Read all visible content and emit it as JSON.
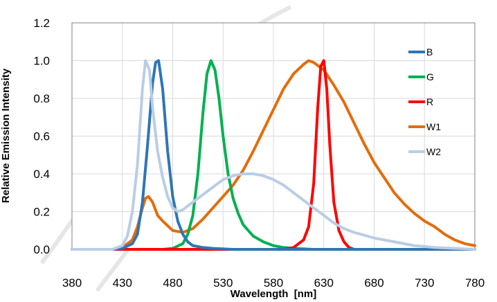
{
  "chart_data": {
    "type": "line",
    "xlabel": "Wavelength  [nm]",
    "ylabel": "Relative Emission Intensity",
    "xlim": [
      380,
      780
    ],
    "ylim": [
      0,
      1.2
    ],
    "x_ticks": [
      380,
      430,
      480,
      530,
      580,
      630,
      680,
      730,
      780
    ],
    "y_ticks": [
      "0.0",
      "0.2",
      "0.4",
      "0.6",
      "0.8",
      "1.0",
      "1.2"
    ],
    "grid": true,
    "legend_position": "right",
    "series": [
      {
        "name": "B",
        "color": "#2e75b6",
        "x": [
          380,
          420,
          430,
          440,
          445,
          450,
          455,
          460,
          463,
          466,
          470,
          475,
          480,
          485,
          490,
          495,
          500,
          510,
          520,
          540,
          780
        ],
        "y": [
          0,
          0,
          0.005,
          0.03,
          0.08,
          0.25,
          0.55,
          0.88,
          0.99,
          1.0,
          0.85,
          0.52,
          0.28,
          0.15,
          0.08,
          0.04,
          0.02,
          0.01,
          0.005,
          0,
          0
        ]
      },
      {
        "name": "G",
        "color": "#00b050",
        "x": [
          380,
          470,
          480,
          490,
          495,
          500,
          505,
          510,
          514,
          518,
          522,
          526,
          530,
          535,
          540,
          545,
          550,
          560,
          570,
          580,
          590,
          600,
          620,
          780
        ],
        "y": [
          0,
          0,
          0.005,
          0.03,
          0.08,
          0.18,
          0.4,
          0.72,
          0.93,
          1.0,
          0.95,
          0.8,
          0.6,
          0.4,
          0.27,
          0.19,
          0.13,
          0.07,
          0.04,
          0.02,
          0.01,
          0.005,
          0,
          0
        ]
      },
      {
        "name": "R",
        "color": "#ff0000",
        "x": [
          380,
          590,
          600,
          610,
          615,
          620,
          624,
          627,
          630,
          633,
          636,
          640,
          645,
          650,
          655,
          660,
          780
        ],
        "y": [
          0,
          0,
          0.01,
          0.05,
          0.12,
          0.35,
          0.75,
          0.97,
          1.0,
          0.85,
          0.55,
          0.25,
          0.1,
          0.04,
          0.01,
          0,
          0
        ]
      },
      {
        "name": "W1",
        "color": "#e46c0a",
        "x": [
          380,
          420,
          430,
          440,
          445,
          450,
          453,
          456,
          460,
          465,
          470,
          480,
          490,
          500,
          510,
          520,
          530,
          540,
          550,
          560,
          570,
          580,
          590,
          600,
          610,
          615,
          620,
          630,
          640,
          650,
          660,
          670,
          680,
          690,
          700,
          710,
          720,
          730,
          740,
          750,
          760,
          770,
          780
        ],
        "y": [
          0,
          0,
          0.01,
          0.05,
          0.12,
          0.22,
          0.27,
          0.28,
          0.25,
          0.18,
          0.15,
          0.1,
          0.09,
          0.11,
          0.16,
          0.22,
          0.28,
          0.34,
          0.42,
          0.52,
          0.63,
          0.74,
          0.85,
          0.93,
          0.98,
          1.0,
          0.99,
          0.95,
          0.87,
          0.78,
          0.67,
          0.56,
          0.46,
          0.38,
          0.3,
          0.24,
          0.19,
          0.15,
          0.12,
          0.08,
          0.05,
          0.03,
          0.02
        ]
      },
      {
        "name": "W2",
        "color": "#b9cde5",
        "x": [
          380,
          420,
          430,
          435,
          440,
          445,
          450,
          453,
          457,
          460,
          465,
          470,
          475,
          480,
          485,
          490,
          500,
          510,
          520,
          530,
          540,
          550,
          560,
          570,
          580,
          590,
          600,
          610,
          620,
          630,
          640,
          650,
          660,
          680,
          700,
          720,
          740,
          760,
          780
        ],
        "y": [
          0,
          0,
          0.02,
          0.07,
          0.2,
          0.45,
          0.85,
          1.0,
          0.95,
          0.75,
          0.52,
          0.38,
          0.28,
          0.22,
          0.2,
          0.21,
          0.25,
          0.29,
          0.33,
          0.37,
          0.39,
          0.4,
          0.4,
          0.39,
          0.37,
          0.34,
          0.3,
          0.26,
          0.22,
          0.18,
          0.14,
          0.11,
          0.09,
          0.06,
          0.04,
          0.02,
          0.01,
          0.005,
          0
        ]
      }
    ]
  }
}
